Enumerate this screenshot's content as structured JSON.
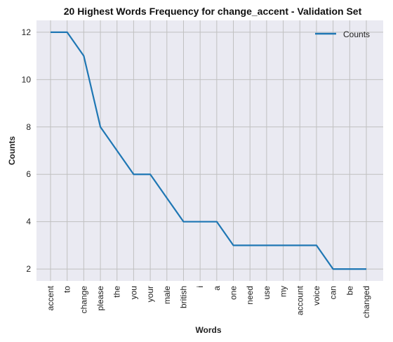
{
  "chart_data": {
    "type": "line",
    "title": "20 Highest Words Frequency for change_accent - Validation Set",
    "xlabel": "Words",
    "ylabel": "Counts",
    "categories": [
      "accent",
      "to",
      "change",
      "please",
      "the",
      "you",
      "your",
      "male",
      "british",
      "i",
      "a",
      "one",
      "need",
      "use",
      "my",
      "account",
      "voice",
      "can",
      "be",
      "changed"
    ],
    "series": [
      {
        "name": "Counts",
        "values": [
          12,
          12,
          11,
          8,
          7,
          6,
          6,
          5,
          4,
          4,
          4,
          3,
          3,
          3,
          3,
          3,
          3,
          2,
          2,
          2
        ]
      }
    ],
    "ylim": [
      1.5,
      12.5
    ],
    "yticks": [
      2,
      4,
      6,
      8,
      10,
      12
    ],
    "grid": true,
    "legend": "top-right",
    "colors": {
      "line": "#1f77b4",
      "plot_bg": "#eaeaf2",
      "grid": "#c0c0c0"
    }
  }
}
